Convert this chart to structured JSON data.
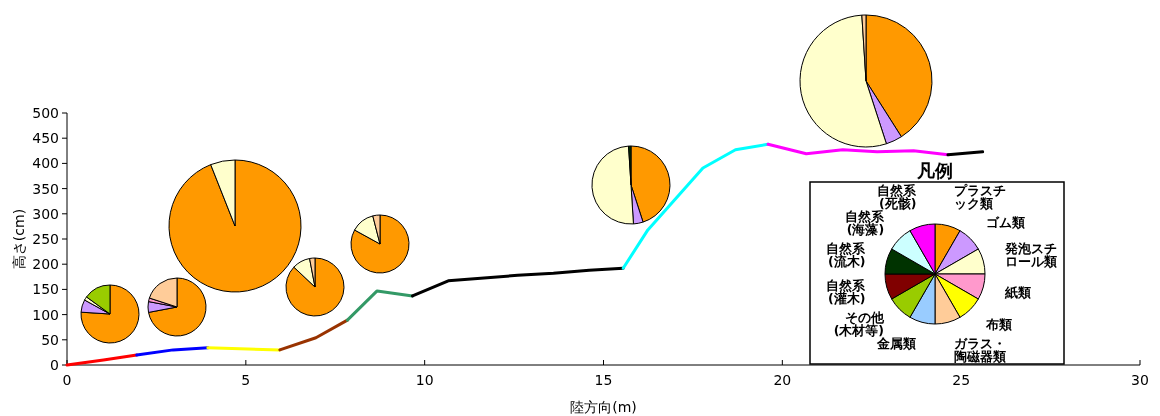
{
  "chart_data": [
    {
      "type": "line",
      "xlabel": "陸方向(m)",
      "ylabel": "高さ(cm)",
      "xlim": [
        0,
        30
      ],
      "xticks": [
        0,
        5,
        10,
        15,
        20,
        25,
        30
      ],
      "ylim": [
        0,
        500
      ],
      "yticks": [
        0,
        50,
        100,
        150,
        200,
        250,
        300,
        350,
        400,
        450,
        500
      ],
      "grid": false,
      "series": [
        {
          "color": "#ff0000",
          "x": [
            0,
            1.02,
            1.95
          ],
          "values": [
            0,
            10,
            20
          ]
        },
        {
          "color": "#0000ff",
          "x": [
            1.95,
            2.97,
            3.94
          ],
          "values": [
            20,
            30,
            34
          ]
        },
        {
          "color": "#ffff00",
          "x": [
            3.94,
            5.95
          ],
          "values": [
            34,
            30
          ]
        },
        {
          "color": "#993300",
          "x": [
            5.95,
            6.96,
            7.84
          ],
          "values": [
            30,
            54,
            89
          ]
        },
        {
          "color": "#339966",
          "x": [
            7.84,
            8.67,
            9.66
          ],
          "values": [
            89,
            147,
            137
          ]
        },
        {
          "color": "#000000",
          "x": [
            9.66,
            10.66,
            12.6,
            13.6,
            14.6,
            15.55
          ],
          "values": [
            137,
            167,
            178,
            182,
            188,
            192
          ]
        },
        {
          "color": "#00ffff",
          "x": [
            15.55,
            16.24,
            17.78,
            18.69,
            19.6
          ],
          "values": [
            192,
            268,
            391,
            427,
            438
          ]
        },
        {
          "color": "#ff00ff",
          "x": [
            19.6,
            20.67,
            21.69,
            22.65,
            23.67,
            24.63
          ],
          "values": [
            438,
            419,
            427,
            423,
            425,
            417
          ]
        },
        {
          "color": "#000000",
          "x": [
            24.63,
            25.6
          ],
          "values": [
            417,
            423
          ]
        }
      ]
    },
    {
      "type": "pie",
      "categories": [
        null,
        null,
        null,
        null
      ],
      "values": [
        76,
        7,
        2,
        15
      ],
      "colors": [
        "#ff9900",
        "#cc99ff",
        "#ffffcc",
        "#99cc00"
      ]
    },
    {
      "type": "pie",
      "categories": [
        null,
        null,
        null,
        null
      ],
      "values": [
        72,
        6,
        2,
        20
      ],
      "colors": [
        "#ff9900",
        "#cc99ff",
        "#ff99cc",
        "#ffcc99"
      ]
    },
    {
      "type": "pie",
      "categories": [
        null,
        null
      ],
      "values": [
        94,
        6
      ],
      "colors": [
        "#ff9900",
        "#ffffcc"
      ]
    },
    {
      "type": "pie",
      "categories": [
        null,
        null,
        null
      ],
      "values": [
        87,
        10,
        3
      ],
      "colors": [
        "#ff9900",
        "#ffffcc",
        "#ffcc99"
      ]
    },
    {
      "type": "pie",
      "categories": [
        null,
        null,
        null
      ],
      "values": [
        83,
        13,
        4
      ],
      "colors": [
        "#ff9900",
        "#ffffcc",
        "#ffcc99"
      ]
    },
    {
      "type": "pie",
      "categories": [
        null,
        null,
        null,
        null
      ],
      "values": [
        45,
        4,
        50,
        1
      ],
      "colors": [
        "#ff9900",
        "#cc99ff",
        "#ffffcc",
        "#003300"
      ]
    },
    {
      "type": "pie",
      "categories": [
        null,
        null,
        null,
        null
      ],
      "values": [
        41,
        4,
        54,
        1
      ],
      "colors": [
        "#ff9900",
        "#cc99ff",
        "#ffffcc",
        "#ffcc99"
      ]
    },
    {
      "type": "pie",
      "title": "凡例",
      "categories": [
        "プラスチック類",
        "ゴム類",
        "発泡スチロール類",
        "紙類",
        "布類",
        "ガラス・陶磁器類",
        "金属類",
        "その他(木材等)",
        "自然系(灌木)",
        "自然系(流木)",
        "自然系(海藻)",
        "自然系(死骸)"
      ],
      "values": [
        8.34,
        8.33,
        8.33,
        8.34,
        8.33,
        8.33,
        8.34,
        8.33,
        8.33,
        8.34,
        8.33,
        8.33
      ],
      "colors": [
        "#ff9900",
        "#cc99ff",
        "#ffffcc",
        "#ff99cc",
        "#ffff00",
        "#ffcc99",
        "#99ccff",
        "#99cc00",
        "#800000",
        "#003300",
        "#ccffff",
        "#ff00ff"
      ]
    }
  ]
}
